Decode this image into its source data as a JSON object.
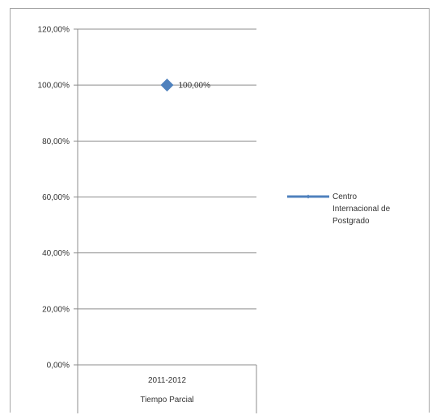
{
  "chart_data": {
    "type": "line",
    "categories": [
      [
        "2011-2012",
        "Tiempo Parcial"
      ]
    ],
    "series": [
      {
        "name": "Centro Internacional de Postgrado",
        "values": [
          1.0
        ],
        "data_labels": [
          "100,00%"
        ],
        "color": "#4f81bd"
      }
    ],
    "ylim": [
      0,
      1.2
    ],
    "y_ticks": [
      0,
      0.2,
      0.4,
      0.6,
      0.8,
      1.0,
      1.2
    ],
    "y_tick_labels": [
      "0,00%",
      "20,00%",
      "40,00%",
      "60,00%",
      "80,00%",
      "100,00%",
      "120,00%"
    ],
    "legend_lines": [
      "Centro",
      "Internacional de",
      "Postgrado"
    ],
    "legend_position": "right",
    "grid": true,
    "gridline_color": "#8c8c8c",
    "axis_color": "#8c8c8c"
  }
}
